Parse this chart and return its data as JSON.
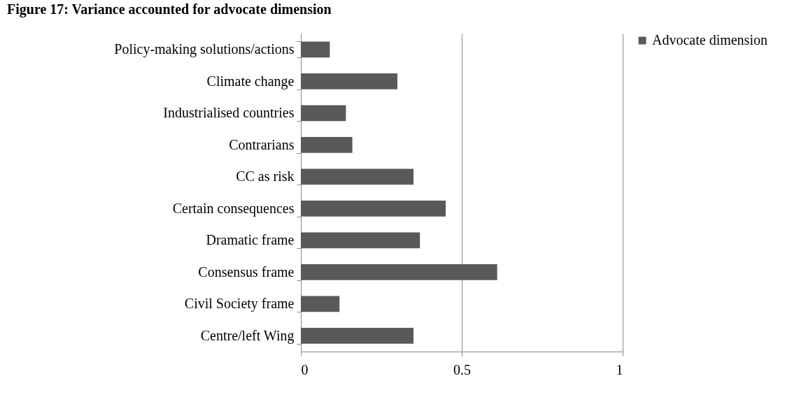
{
  "chart_data": {
    "type": "bar",
    "orientation": "horizontal",
    "title": "Figure 17: Variance accounted for advocate dimension",
    "categories": [
      "Policy-making solutions/actions",
      "Climate change",
      "Industrialised countries",
      "Contrarians",
      "CC as risk",
      "Certain consequences",
      "Dramatic frame",
      "Consensus frame",
      "Civil Society frame",
      "Centre/left Wing"
    ],
    "series": [
      {
        "name": "Advocate dimension",
        "color": "#595959",
        "values": [
          0.09,
          0.3,
          0.14,
          0.16,
          0.35,
          0.45,
          0.37,
          0.61,
          0.12,
          0.35
        ]
      }
    ],
    "xlim": [
      0,
      1
    ],
    "xticks": [
      0,
      0.5,
      1
    ],
    "grid": "x",
    "legend": "right"
  }
}
